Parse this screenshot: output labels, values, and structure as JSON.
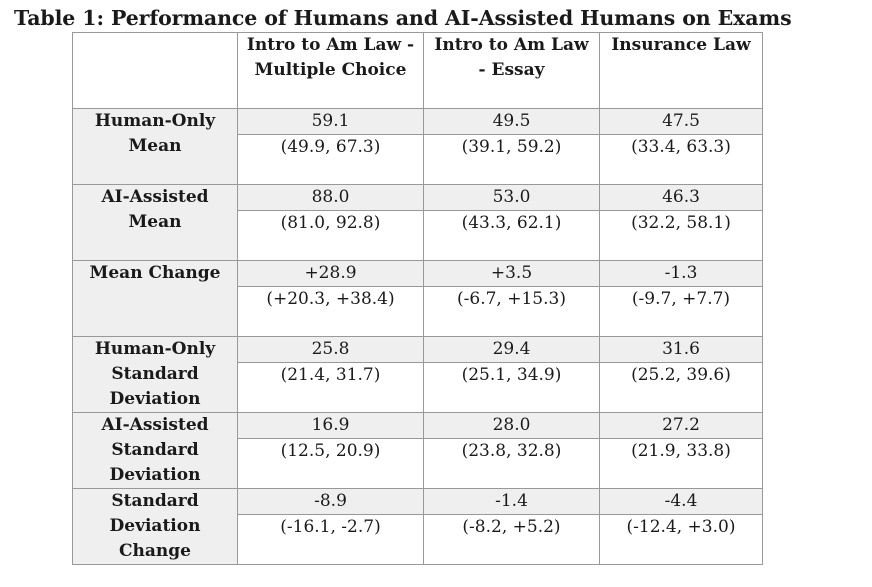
{
  "caption": "Table 1: Performance of Humans and AI-Assisted Humans on Exams",
  "table": {
    "columns": [
      "",
      "Intro to Am Law - Multiple Choice",
      "Intro to Am Law - Essay",
      "Insurance Law"
    ],
    "rows": [
      {
        "label": "Human-Only Mean",
        "values": [
          "59.1",
          "49.5",
          "47.5"
        ],
        "intervals": [
          "(49.9, 67.3)",
          "(39.1, 59.2)",
          "(33.4, 63.3)"
        ]
      },
      {
        "label": "AI-Assisted Mean",
        "values": [
          "88.0",
          "53.0",
          "46.3"
        ],
        "intervals": [
          "(81.0, 92.8)",
          "(43.3, 62.1)",
          "(32.2, 58.1)"
        ]
      },
      {
        "label": "Mean Change",
        "values": [
          "+28.9",
          "+3.5",
          "-1.3"
        ],
        "intervals": [
          "(+20.3, +38.4)",
          "(-6.7, +15.3)",
          "(-9.7, +7.7)"
        ]
      },
      {
        "label": "Human-Only Standard Deviation",
        "values": [
          "25.8",
          "29.4",
          "31.6"
        ],
        "intervals": [
          "(21.4, 31.7)",
          "(25.1, 34.9)",
          "(25.2, 39.6)"
        ]
      },
      {
        "label": "AI-Assisted Standard Deviation",
        "values": [
          "16.9",
          "28.0",
          "27.2"
        ],
        "intervals": [
          "(12.5, 20.9)",
          "(23.8, 32.8)",
          "(21.9, 33.8)"
        ]
      },
      {
        "label": "Standard Deviation Change",
        "values": [
          "-8.9",
          "-1.4",
          "-4.4"
        ],
        "intervals": [
          "(-16.1, -2.7)",
          "(-8.2, +5.2)",
          "(-12.4, +3.0)"
        ]
      }
    ]
  }
}
